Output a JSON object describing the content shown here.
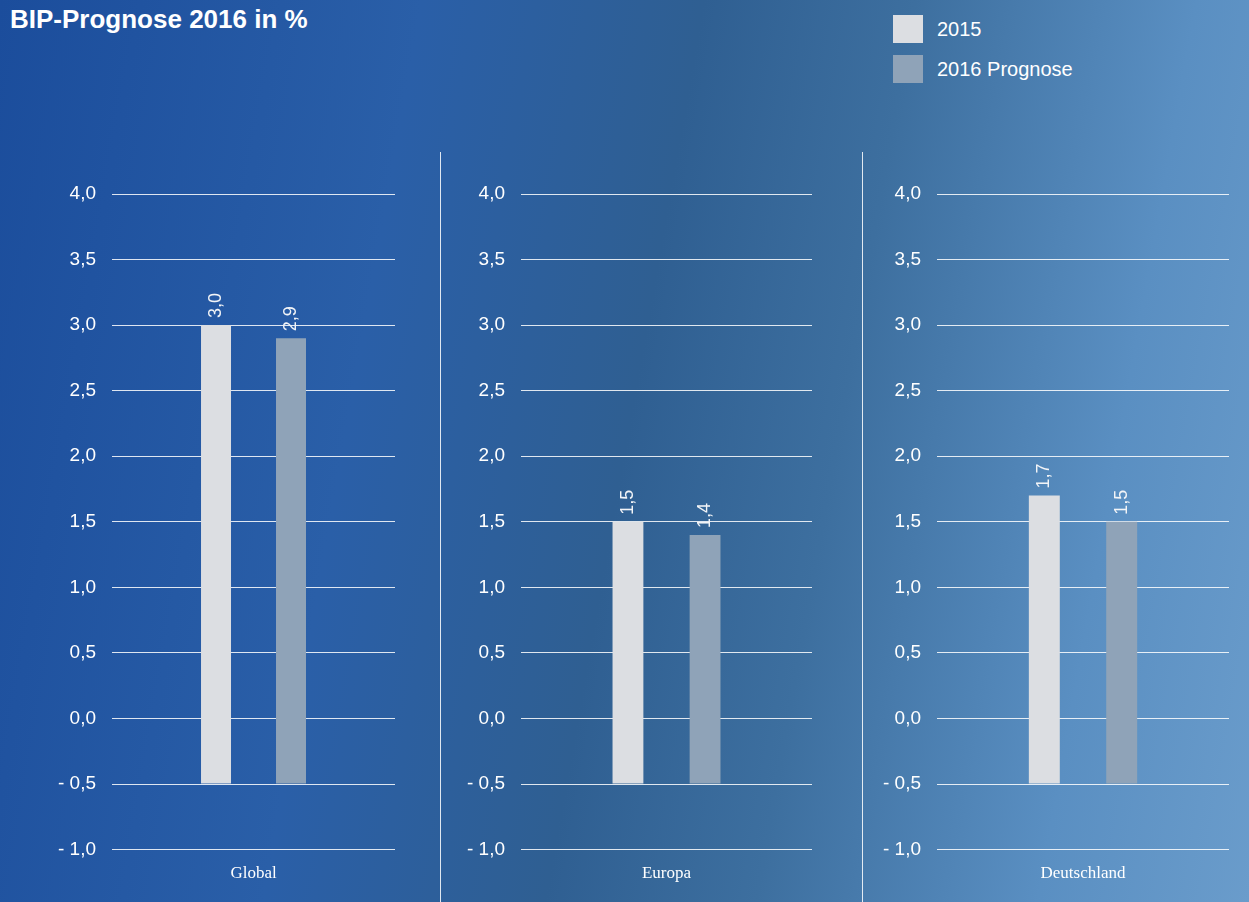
{
  "chart_data": [
    {
      "type": "bar",
      "title": "BIP-Prognose 2016 in %",
      "categories": [
        "Global"
      ],
      "series": [
        {
          "name": "2015",
          "color": "#dcdee2",
          "values": [
            3.0
          ],
          "value_labels": [
            "3,0"
          ]
        },
        {
          "name": "2016 Prognose",
          "color": "#8fa3b8",
          "values": [
            2.9
          ],
          "value_labels": [
            "2,9"
          ]
        }
      ],
      "base": -0.5,
      "ylim": [
        -1,
        4
      ],
      "yticks": [
        {
          "value": -1,
          "label": "- 1,0"
        },
        {
          "value": -0.5,
          "label": "- 0,5"
        },
        {
          "value": 0,
          "label": "0,0"
        },
        {
          "value": 0.5,
          "label": "0,5"
        },
        {
          "value": 1,
          "label": "1,0"
        },
        {
          "value": 1.5,
          "label": "1,5"
        },
        {
          "value": 2,
          "label": "2,0"
        },
        {
          "value": 2.5,
          "label": "2,5"
        },
        {
          "value": 3,
          "label": "3,0"
        },
        {
          "value": 3.5,
          "label": "3,5"
        },
        {
          "value": 4,
          "label": "4,0"
        }
      ],
      "grid": true,
      "data_labels": true
    },
    {
      "type": "bar",
      "categories": [
        "Europa"
      ],
      "series": [
        {
          "name": "2015",
          "color": "#dcdee2",
          "values": [
            1.5
          ],
          "value_labels": [
            "1,5"
          ]
        },
        {
          "name": "2016 Prognose",
          "color": "#8fa3b8",
          "values": [
            1.4
          ],
          "value_labels": [
            "1,4"
          ]
        }
      ],
      "base": -0.5,
      "ylim": [
        -1,
        4
      ],
      "yticks": [
        {
          "value": -1,
          "label": "- 1,0"
        },
        {
          "value": -0.5,
          "label": "- 0,5"
        },
        {
          "value": 0,
          "label": "0,0"
        },
        {
          "value": 0.5,
          "label": "0,5"
        },
        {
          "value": 1,
          "label": "1,0"
        },
        {
          "value": 1.5,
          "label": "1,5"
        },
        {
          "value": 2,
          "label": "2,0"
        },
        {
          "value": 2.5,
          "label": "2,5"
        },
        {
          "value": 3,
          "label": "3,0"
        },
        {
          "value": 3.5,
          "label": "3,5"
        },
        {
          "value": 4,
          "label": "4,0"
        }
      ],
      "grid": true,
      "data_labels": true
    },
    {
      "type": "bar",
      "categories": [
        "Deutschland"
      ],
      "series": [
        {
          "name": "2015",
          "color": "#dcdee2",
          "values": [
            1.7
          ],
          "value_labels": [
            "1,7"
          ]
        },
        {
          "name": "2016 Prognose",
          "color": "#8fa3b8",
          "values": [
            1.5
          ],
          "value_labels": [
            "1,5"
          ]
        }
      ],
      "base": -0.5,
      "ylim": [
        -1,
        4
      ],
      "yticks": [
        {
          "value": -1,
          "label": "- 1,0"
        },
        {
          "value": -0.5,
          "label": "- 0,5"
        },
        {
          "value": 0,
          "label": "0,0"
        },
        {
          "value": 0.5,
          "label": "0,5"
        },
        {
          "value": 1,
          "label": "1,0"
        },
        {
          "value": 1.5,
          "label": "1,5"
        },
        {
          "value": 2,
          "label": "2,0"
        },
        {
          "value": 2.5,
          "label": "2,5"
        },
        {
          "value": 3,
          "label": "3,0"
        },
        {
          "value": 3.5,
          "label": "3,5"
        },
        {
          "value": 4,
          "label": "4,0"
        }
      ],
      "grid": true,
      "data_labels": true,
      "legend": "top right"
    }
  ]
}
